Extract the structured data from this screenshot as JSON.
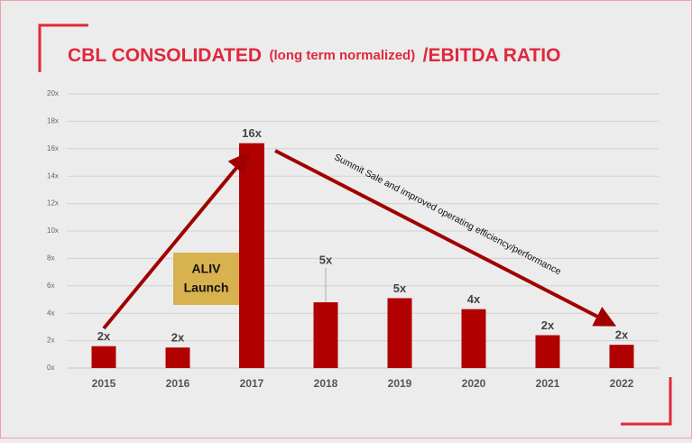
{
  "chart_data": {
    "type": "bar",
    "title_parts": [
      "CBL CONSOLIDATED",
      "(long term normalized)",
      "/EBITDA RATIO"
    ],
    "categories": [
      "2015",
      "2016",
      "2017",
      "2018",
      "2019",
      "2020",
      "2021",
      "2022"
    ],
    "values": [
      1.6,
      1.5,
      16.4,
      4.8,
      5.1,
      4.3,
      2.4,
      1.7
    ],
    "value_labels": [
      "2x",
      "2x",
      "16x",
      "5x",
      "5x",
      "4x",
      "2x",
      "2x"
    ],
    "color": "#b00000",
    "ylim": [
      0,
      20
    ],
    "yticks": [
      {
        "value": 0,
        "label": "0x"
      },
      {
        "value": 2,
        "label": "2x"
      },
      {
        "value": 4,
        "label": "4x"
      },
      {
        "value": 6,
        "label": "6x"
      },
      {
        "value": 8,
        "label": "8x"
      },
      {
        "value": 10,
        "label": "10x"
      },
      {
        "value": 12,
        "label": "12x"
      },
      {
        "value": 14,
        "label": "14x"
      },
      {
        "value": 16,
        "label": "16x"
      },
      {
        "value": 18,
        "label": "18x"
      },
      {
        "value": 20,
        "label": "20x"
      }
    ],
    "grid": true,
    "box_annotation": [
      "ALIV",
      "Launch"
    ],
    "arrow_annotation": "Summit Sale and improved operating efficiency/performance"
  }
}
